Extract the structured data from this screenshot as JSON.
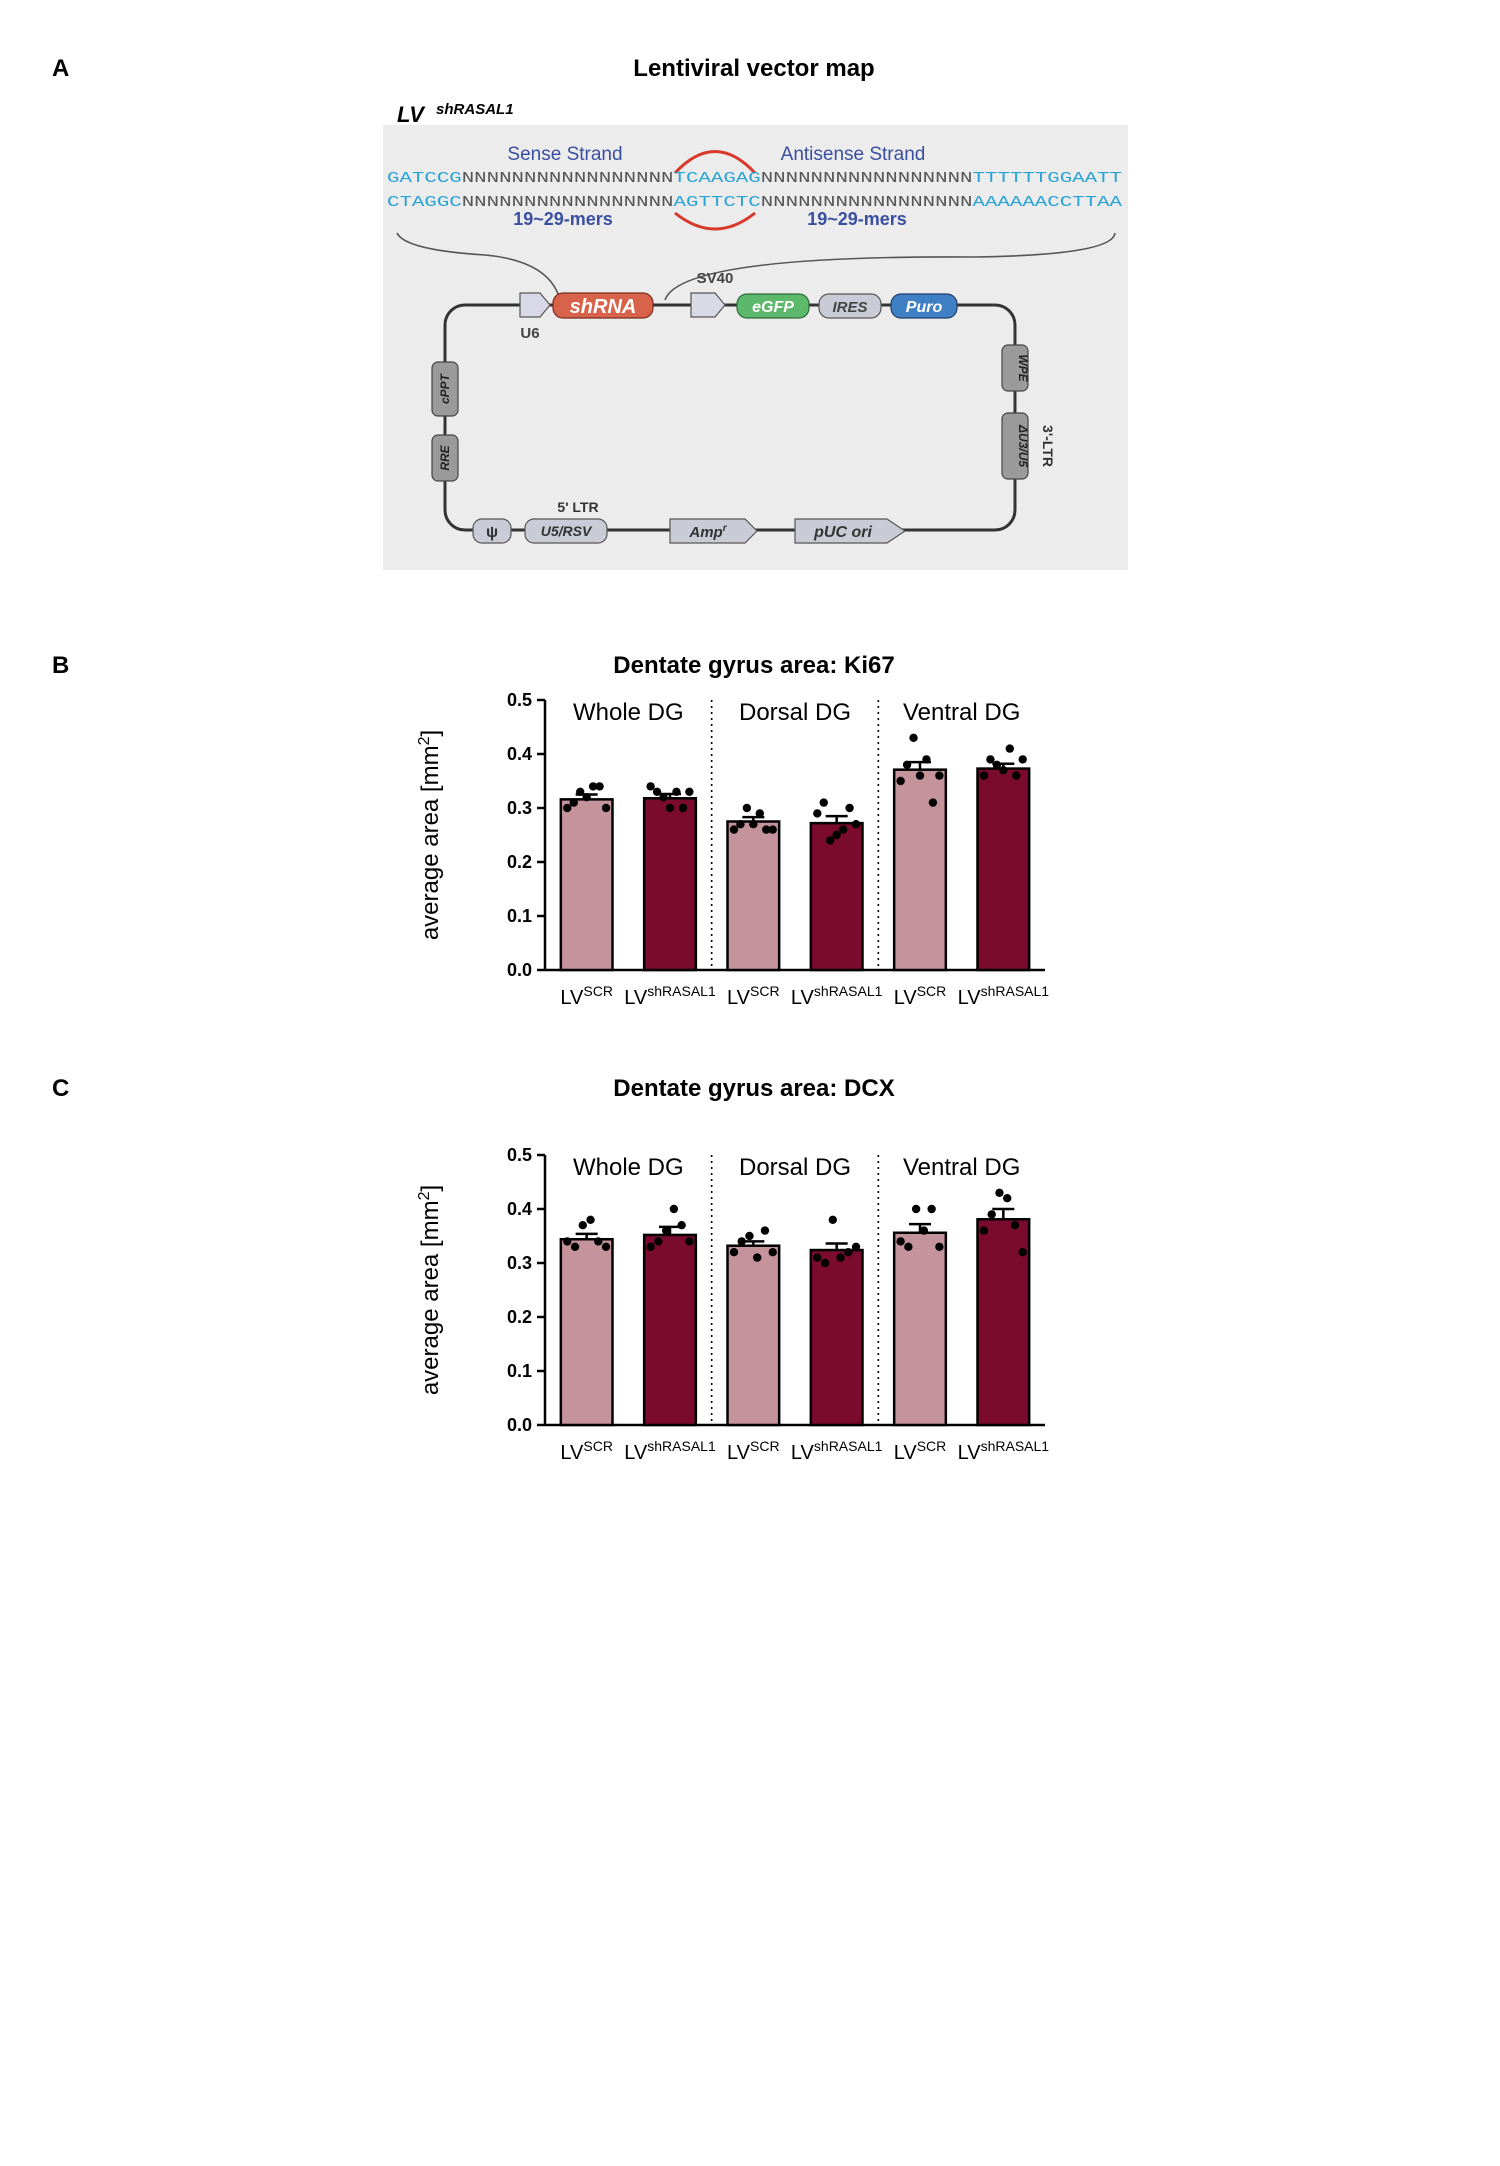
{
  "panels": {
    "a": {
      "letter": "A",
      "title": "Lentiviral vector map"
    },
    "b": {
      "letter": "B",
      "title": "Dentate gyrus area: Ki67"
    },
    "c": {
      "letter": "C",
      "title": "Dentate gyrus area: DCX"
    }
  },
  "vector_map": {
    "construct_base": "LV",
    "construct_sup": "shRASAL1",
    "sense_strand": "Sense Strand",
    "antisense_strand": "Antisense  Strand",
    "seq_top": {
      "left": "GATCCG",
      "mid1": "NNNNNNNNNNNNNNNNN",
      "loop": "TCAAGAG",
      "mid2": "NNNNNNNNNNNNNNNNN",
      "right": "TTTTTTGGAATT"
    },
    "seq_bottom": {
      "left": "CTAGGC",
      "mid1": "NNNNNNNNNNNNNNNNN",
      "loop": "AGTTCTC",
      "mid2": "NNNNNNNNNNNNNNNNN",
      "right": "AAAAAACCTTAA"
    },
    "mers_left": "19~29-mers",
    "mers_right": "19~29-mers",
    "elements": {
      "u6": "U6",
      "shrna": "shRNA",
      "sv40": "SV40",
      "egfp": "eGFP",
      "ires": "IRES",
      "puro": "Puro",
      "wpe": "WPE",
      "ltr3": "3'-LTR",
      "du3": "ΔU3/U5",
      "cppt": "cPPT",
      "rre": "RRE",
      "psi": "ψ",
      "ltr5": "5' LTR",
      "u5rsv": "U5/RSV",
      "amp": "Amp",
      "amp_sup": "r",
      "puc": "pUC ori"
    },
    "colors": {
      "seq_blue": "#29a3d6",
      "label_blue": "#3a4fa0",
      "loop_red": "#d9392b",
      "shrna": "#d9634a",
      "egfp": "#5cb86a",
      "puro": "#3f7fc4",
      "grey": "#c9ccd6",
      "background": "#ececec"
    }
  },
  "chart_data": [
    {
      "type": "bar",
      "title": "Dentate gyrus area: Ki67",
      "ylabel": "average area [mm",
      "ylabel_sup": "2",
      "ylabel_end": "]",
      "ylim": [
        0,
        0.5
      ],
      "yticks": [
        "0.0",
        "0.1",
        "0.2",
        "0.3",
        "0.4",
        "0.5"
      ],
      "groups": [
        "Whole DG",
        "Dorsal DG",
        "Ventral DG"
      ],
      "categories": [
        {
          "base": "LV",
          "sup": "SCR"
        },
        {
          "base": "LV",
          "sup": "shRASAL1"
        },
        {
          "base": "LV",
          "sup": "SCR"
        },
        {
          "base": "LV",
          "sup": "shRASAL1"
        },
        {
          "base": "LV",
          "sup": "SCR"
        },
        {
          "base": "LV",
          "sup": "shRASAL1"
        }
      ],
      "values": [
        0.316,
        0.318,
        0.275,
        0.272,
        0.371,
        0.373
      ],
      "sem": [
        0.009,
        0.008,
        0.008,
        0.013,
        0.014,
        0.009
      ],
      "points": [
        [
          0.3,
          0.31,
          0.33,
          0.32,
          0.34,
          0.34,
          0.3
        ],
        [
          0.34,
          0.33,
          0.32,
          0.3,
          0.33,
          0.3,
          0.33
        ],
        [
          0.26,
          0.27,
          0.3,
          0.27,
          0.29,
          0.26,
          0.26
        ],
        [
          0.29,
          0.31,
          0.24,
          0.25,
          0.26,
          0.3,
          0.27
        ],
        [
          0.35,
          0.38,
          0.43,
          0.36,
          0.39,
          0.31,
          0.36
        ],
        [
          0.36,
          0.39,
          0.38,
          0.37,
          0.41,
          0.36,
          0.39
        ]
      ],
      "bar_colors": [
        "#c4939c",
        "#7a0a2e",
        "#c4939c",
        "#7a0a2e",
        "#c4939c",
        "#7a0a2e"
      ]
    },
    {
      "type": "bar",
      "title": "Dentate gyrus area: DCX",
      "ylabel": "average area [mm",
      "ylabel_sup": "2",
      "ylabel_end": "]",
      "ylim": [
        0,
        0.5
      ],
      "yticks": [
        "0.0",
        "0.1",
        "0.2",
        "0.3",
        "0.4",
        "0.5"
      ],
      "groups": [
        "Whole DG",
        "Dorsal DG",
        "Ventral DG"
      ],
      "categories": [
        {
          "base": "LV",
          "sup": "SCR"
        },
        {
          "base": "LV",
          "sup": "shRASAL1"
        },
        {
          "base": "LV",
          "sup": "SCR"
        },
        {
          "base": "LV",
          "sup": "shRASAL1"
        },
        {
          "base": "LV",
          "sup": "SCR"
        },
        {
          "base": "LV",
          "sup": "shRASAL1"
        }
      ],
      "values": [
        0.344,
        0.352,
        0.332,
        0.324,
        0.356,
        0.381
      ],
      "sem": [
        0.01,
        0.015,
        0.008,
        0.012,
        0.016,
        0.019
      ],
      "points": [
        [
          0.34,
          0.33,
          0.37,
          0.38,
          0.34,
          0.33
        ],
        [
          0.33,
          0.34,
          0.36,
          0.4,
          0.37,
          0.34
        ],
        [
          0.32,
          0.34,
          0.35,
          0.31,
          0.36,
          0.32
        ],
        [
          0.31,
          0.3,
          0.38,
          0.31,
          0.32,
          0.33
        ],
        [
          0.34,
          0.33,
          0.4,
          0.36,
          0.4,
          0.33
        ],
        [
          0.36,
          0.39,
          0.43,
          0.42,
          0.37,
          0.32
        ]
      ],
      "bar_colors": [
        "#c4939c",
        "#7a0a2e",
        "#c4939c",
        "#7a0a2e",
        "#c4939c",
        "#7a0a2e"
      ]
    }
  ]
}
